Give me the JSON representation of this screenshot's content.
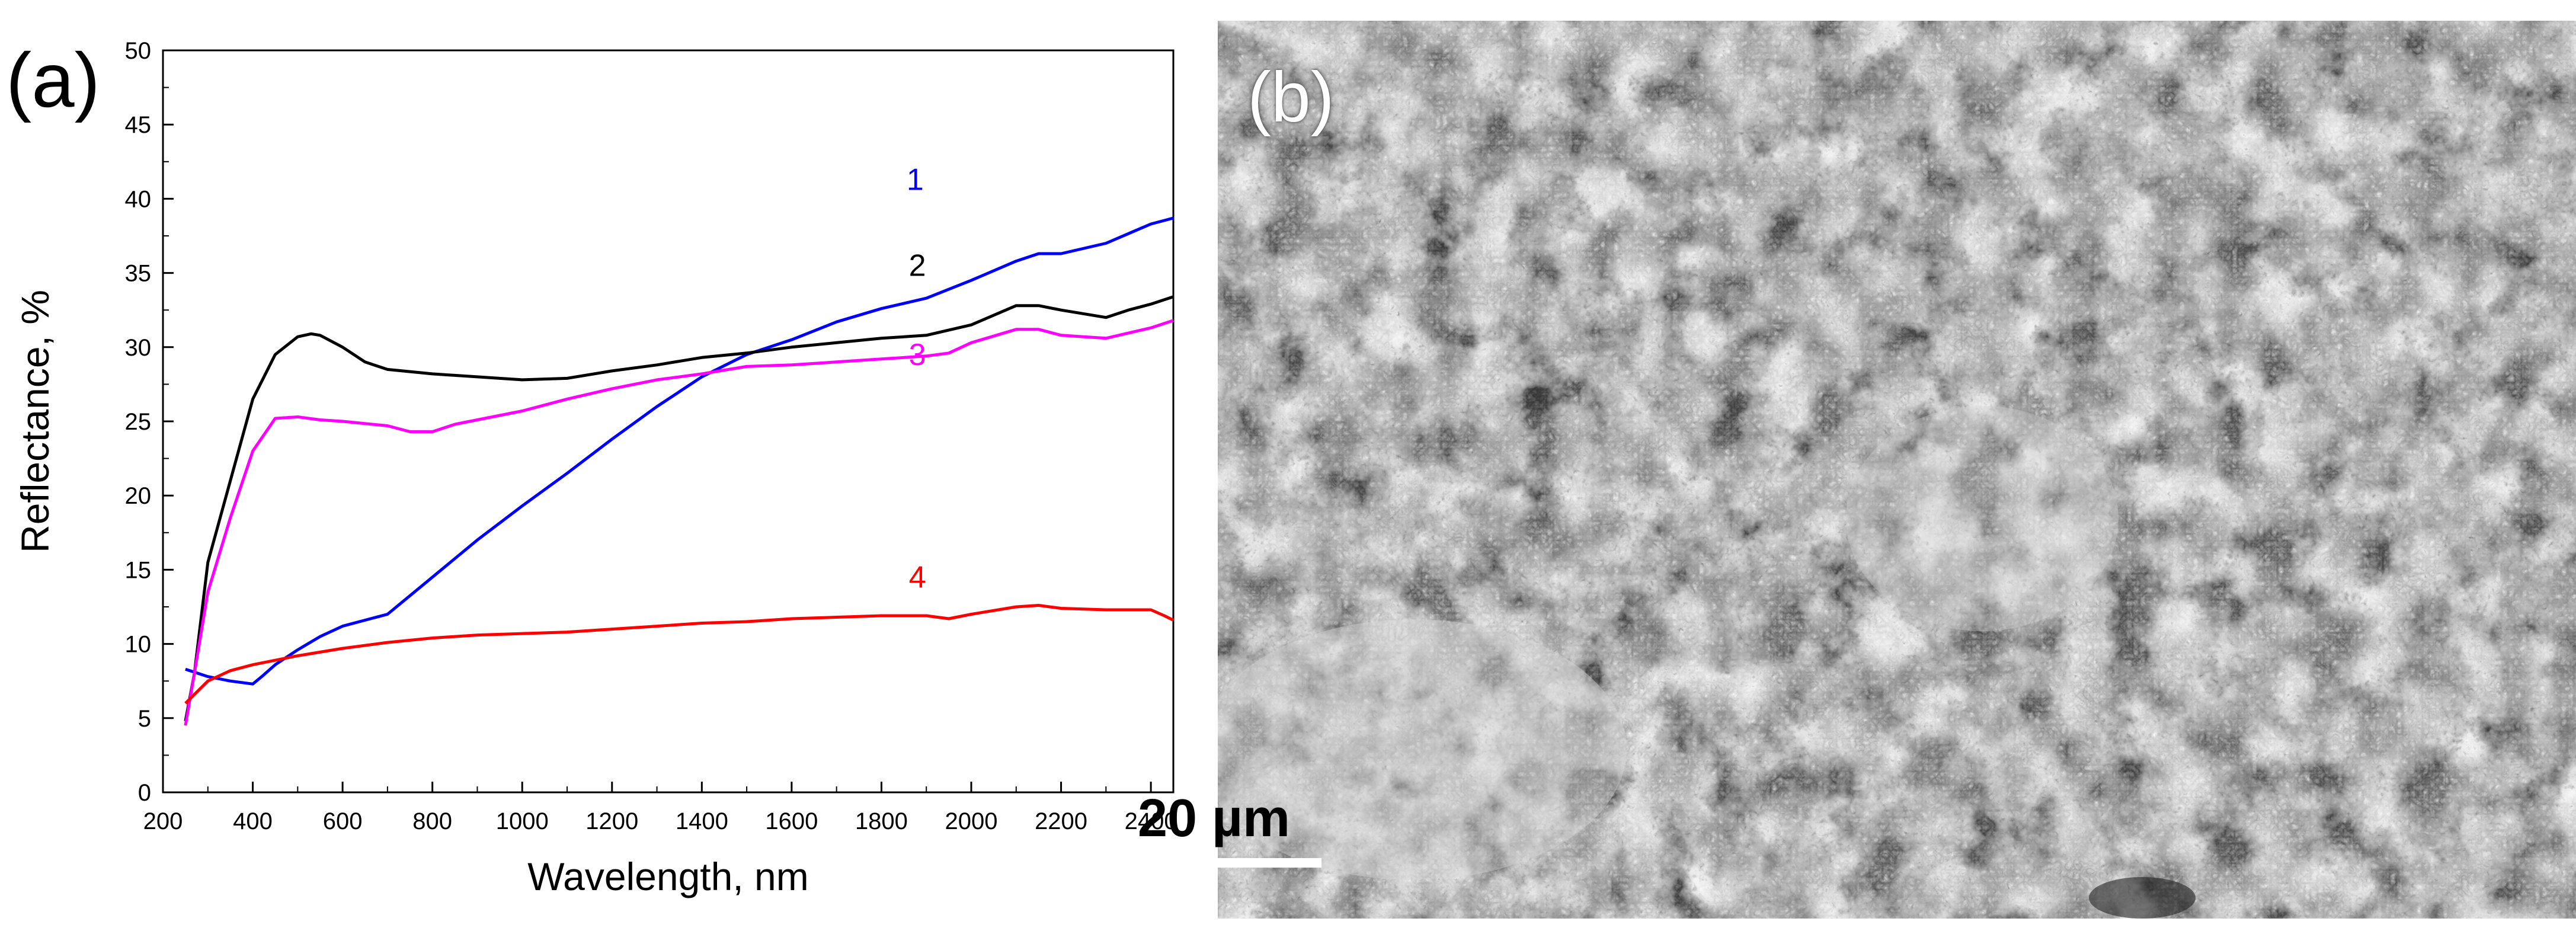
{
  "panel_a": {
    "label": "(a)"
  },
  "panel_b": {
    "label": "(b)",
    "scale_bar": "20 µm"
  },
  "chart_data": {
    "type": "line",
    "title": "",
    "xlabel": "Wavelength, nm",
    "ylabel": "Reflectance, %",
    "xlim": [
      200,
      2450
    ],
    "ylim": [
      0,
      50
    ],
    "xticks": [
      200,
      400,
      600,
      800,
      1000,
      1200,
      1400,
      1600,
      1800,
      2000,
      2200,
      2400
    ],
    "yticks": [
      0,
      5,
      10,
      15,
      20,
      25,
      30,
      35,
      40,
      45,
      50
    ],
    "grid": false,
    "series": [
      {
        "name": "1",
        "color": "#0000ff",
        "x": [
          250,
          300,
          350,
          400,
          420,
          450,
          500,
          550,
          600,
          650,
          700,
          800,
          900,
          1000,
          1100,
          1200,
          1300,
          1400,
          1500,
          1600,
          1700,
          1800,
          1900,
          2000,
          2100,
          2150,
          2200,
          2300,
          2400,
          2450
        ],
        "y": [
          8.3,
          7.8,
          7.5,
          7.3,
          7.8,
          8.6,
          9.6,
          10.5,
          11.2,
          11.6,
          12.0,
          14.5,
          17.0,
          19.3,
          21.5,
          23.8,
          26.0,
          28.0,
          29.5,
          30.5,
          31.7,
          32.6,
          33.3,
          34.5,
          35.8,
          36.3,
          36.3,
          37.0,
          38.3,
          38.7
        ]
      },
      {
        "name": "2",
        "color": "#000000",
        "x": [
          250,
          270,
          300,
          350,
          400,
          450,
          500,
          530,
          550,
          600,
          650,
          700,
          800,
          900,
          1000,
          1100,
          1200,
          1300,
          1400,
          1500,
          1600,
          1700,
          1800,
          1900,
          2000,
          2100,
          2150,
          2200,
          2300,
          2350,
          2400,
          2450
        ],
        "y": [
          4.8,
          8.0,
          15.5,
          21.0,
          26.5,
          29.5,
          30.7,
          30.9,
          30.8,
          30.0,
          29.0,
          28.5,
          28.2,
          28.0,
          27.8,
          27.9,
          28.4,
          28.8,
          29.3,
          29.6,
          30.0,
          30.3,
          30.6,
          30.8,
          31.5,
          32.8,
          32.8,
          32.5,
          32.0,
          32.5,
          32.9,
          33.4
        ]
      },
      {
        "name": "3",
        "color": "#ff00ff",
        "x": [
          250,
          270,
          300,
          350,
          400,
          450,
          500,
          550,
          600,
          700,
          750,
          800,
          850,
          900,
          1000,
          1100,
          1200,
          1300,
          1400,
          1500,
          1600,
          1700,
          1800,
          1900,
          1950,
          2000,
          2100,
          2150,
          2200,
          2300,
          2400,
          2450
        ],
        "y": [
          4.5,
          8.0,
          13.5,
          18.5,
          23.0,
          25.2,
          25.3,
          25.1,
          25.0,
          24.7,
          24.3,
          24.3,
          24.8,
          25.1,
          25.7,
          26.5,
          27.2,
          27.8,
          28.2,
          28.7,
          28.8,
          29.0,
          29.2,
          29.4,
          29.6,
          30.3,
          31.2,
          31.2,
          30.8,
          30.6,
          31.3,
          31.8
        ]
      },
      {
        "name": "4",
        "color": "#ff0000",
        "x": [
          250,
          300,
          350,
          400,
          500,
          600,
          700,
          800,
          900,
          1000,
          1100,
          1200,
          1300,
          1400,
          1500,
          1600,
          1700,
          1800,
          1900,
          1950,
          2000,
          2100,
          2150,
          2200,
          2300,
          2400,
          2430,
          2450
        ],
        "y": [
          6.0,
          7.5,
          8.2,
          8.6,
          9.2,
          9.7,
          10.1,
          10.4,
          10.6,
          10.7,
          10.8,
          11.0,
          11.2,
          11.4,
          11.5,
          11.7,
          11.8,
          11.9,
          11.9,
          11.7,
          12.0,
          12.5,
          12.6,
          12.4,
          12.3,
          12.3,
          11.9,
          11.6
        ]
      }
    ]
  }
}
